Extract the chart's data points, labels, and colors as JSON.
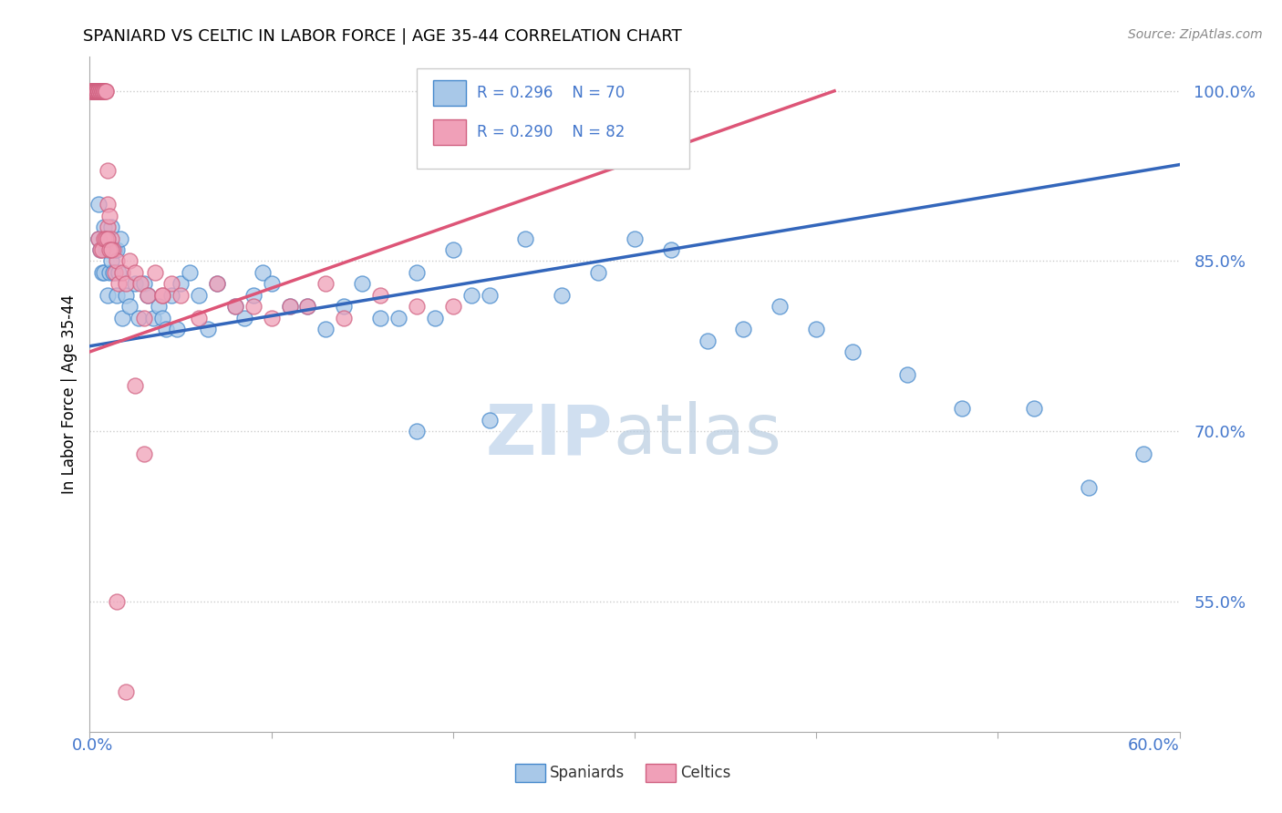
{
  "title": "SPANIARD VS CELTIC IN LABOR FORCE | AGE 35-44 CORRELATION CHART",
  "source": "Source: ZipAtlas.com",
  "ylabel": "In Labor Force | Age 35-44",
  "ytick_vals": [
    0.55,
    0.7,
    0.85,
    1.0
  ],
  "ytick_labels": [
    "55.0%",
    "70.0%",
    "85.0%",
    "100.0%"
  ],
  "xlim": [
    0.0,
    0.6
  ],
  "ylim": [
    0.435,
    1.03
  ],
  "legend_blue_r": "R = 0.296",
  "legend_blue_n": "N = 70",
  "legend_pink_r": "R = 0.290",
  "legend_pink_n": "N = 82",
  "blue_fill": "#a8c8e8",
  "blue_edge": "#4488cc",
  "pink_fill": "#f0a0b8",
  "pink_edge": "#d06080",
  "blue_line": "#3366bb",
  "pink_line": "#dd5577",
  "watermark_color": "#d0dff0",
  "blue_trend_x": [
    0.0,
    0.6
  ],
  "blue_trend_y": [
    0.775,
    0.935
  ],
  "pink_trend_x": [
    0.0,
    0.41
  ],
  "pink_trend_y": [
    0.77,
    1.0
  ],
  "spaniard_x": [
    0.005,
    0.005,
    0.006,
    0.007,
    0.008,
    0.008,
    0.009,
    0.01,
    0.01,
    0.011,
    0.012,
    0.012,
    0.013,
    0.014,
    0.015,
    0.015,
    0.016,
    0.017,
    0.018,
    0.02,
    0.022,
    0.025,
    0.027,
    0.03,
    0.032,
    0.035,
    0.038,
    0.04,
    0.042,
    0.045,
    0.048,
    0.05,
    0.055,
    0.06,
    0.065,
    0.07,
    0.08,
    0.085,
    0.09,
    0.095,
    0.1,
    0.11,
    0.12,
    0.13,
    0.14,
    0.15,
    0.16,
    0.17,
    0.18,
    0.19,
    0.2,
    0.21,
    0.22,
    0.24,
    0.26,
    0.28,
    0.3,
    0.32,
    0.34,
    0.36,
    0.38,
    0.4,
    0.42,
    0.45,
    0.48,
    0.52,
    0.55,
    0.58,
    0.18,
    0.22
  ],
  "spaniard_y": [
    0.87,
    0.9,
    0.86,
    0.84,
    0.88,
    0.84,
    0.86,
    0.86,
    0.82,
    0.84,
    0.88,
    0.85,
    0.84,
    0.86,
    0.82,
    0.86,
    0.84,
    0.87,
    0.8,
    0.82,
    0.81,
    0.83,
    0.8,
    0.83,
    0.82,
    0.8,
    0.81,
    0.8,
    0.79,
    0.82,
    0.79,
    0.83,
    0.84,
    0.82,
    0.79,
    0.83,
    0.81,
    0.8,
    0.82,
    0.84,
    0.83,
    0.81,
    0.81,
    0.79,
    0.81,
    0.83,
    0.8,
    0.8,
    0.84,
    0.8,
    0.86,
    0.82,
    0.82,
    0.87,
    0.82,
    0.84,
    0.87,
    0.86,
    0.78,
    0.79,
    0.81,
    0.79,
    0.77,
    0.75,
    0.72,
    0.72,
    0.65,
    0.68,
    0.7,
    0.71
  ],
  "celtic_x": [
    0.001,
    0.001,
    0.001,
    0.001,
    0.002,
    0.002,
    0.002,
    0.002,
    0.002,
    0.003,
    0.003,
    0.003,
    0.003,
    0.003,
    0.003,
    0.004,
    0.004,
    0.004,
    0.004,
    0.004,
    0.004,
    0.005,
    0.005,
    0.005,
    0.005,
    0.005,
    0.006,
    0.006,
    0.006,
    0.007,
    0.007,
    0.007,
    0.008,
    0.008,
    0.008,
    0.009,
    0.009,
    0.01,
    0.01,
    0.01,
    0.011,
    0.012,
    0.013,
    0.014,
    0.015,
    0.016,
    0.018,
    0.02,
    0.022,
    0.025,
    0.028,
    0.032,
    0.036,
    0.04,
    0.045,
    0.05,
    0.06,
    0.07,
    0.08,
    0.09,
    0.1,
    0.11,
    0.12,
    0.13,
    0.14,
    0.16,
    0.18,
    0.2,
    0.03,
    0.04,
    0.005,
    0.006,
    0.007,
    0.008,
    0.009,
    0.01,
    0.011,
    0.012,
    0.015,
    0.02,
    0.025,
    0.03
  ],
  "celtic_y": [
    1.0,
    1.0,
    1.0,
    1.0,
    1.0,
    1.0,
    1.0,
    1.0,
    1.0,
    1.0,
    1.0,
    1.0,
    1.0,
    1.0,
    1.0,
    1.0,
    1.0,
    1.0,
    1.0,
    1.0,
    1.0,
    1.0,
    1.0,
    1.0,
    1.0,
    1.0,
    1.0,
    1.0,
    1.0,
    1.0,
    1.0,
    1.0,
    1.0,
    1.0,
    1.0,
    1.0,
    1.0,
    0.93,
    0.9,
    0.88,
    0.89,
    0.87,
    0.86,
    0.84,
    0.85,
    0.83,
    0.84,
    0.83,
    0.85,
    0.84,
    0.83,
    0.82,
    0.84,
    0.82,
    0.83,
    0.82,
    0.8,
    0.83,
    0.81,
    0.81,
    0.8,
    0.81,
    0.81,
    0.83,
    0.8,
    0.82,
    0.81,
    0.81,
    0.8,
    0.82,
    0.87,
    0.86,
    0.86,
    0.87,
    0.87,
    0.87,
    0.86,
    0.86,
    0.55,
    0.47,
    0.74,
    0.68
  ]
}
